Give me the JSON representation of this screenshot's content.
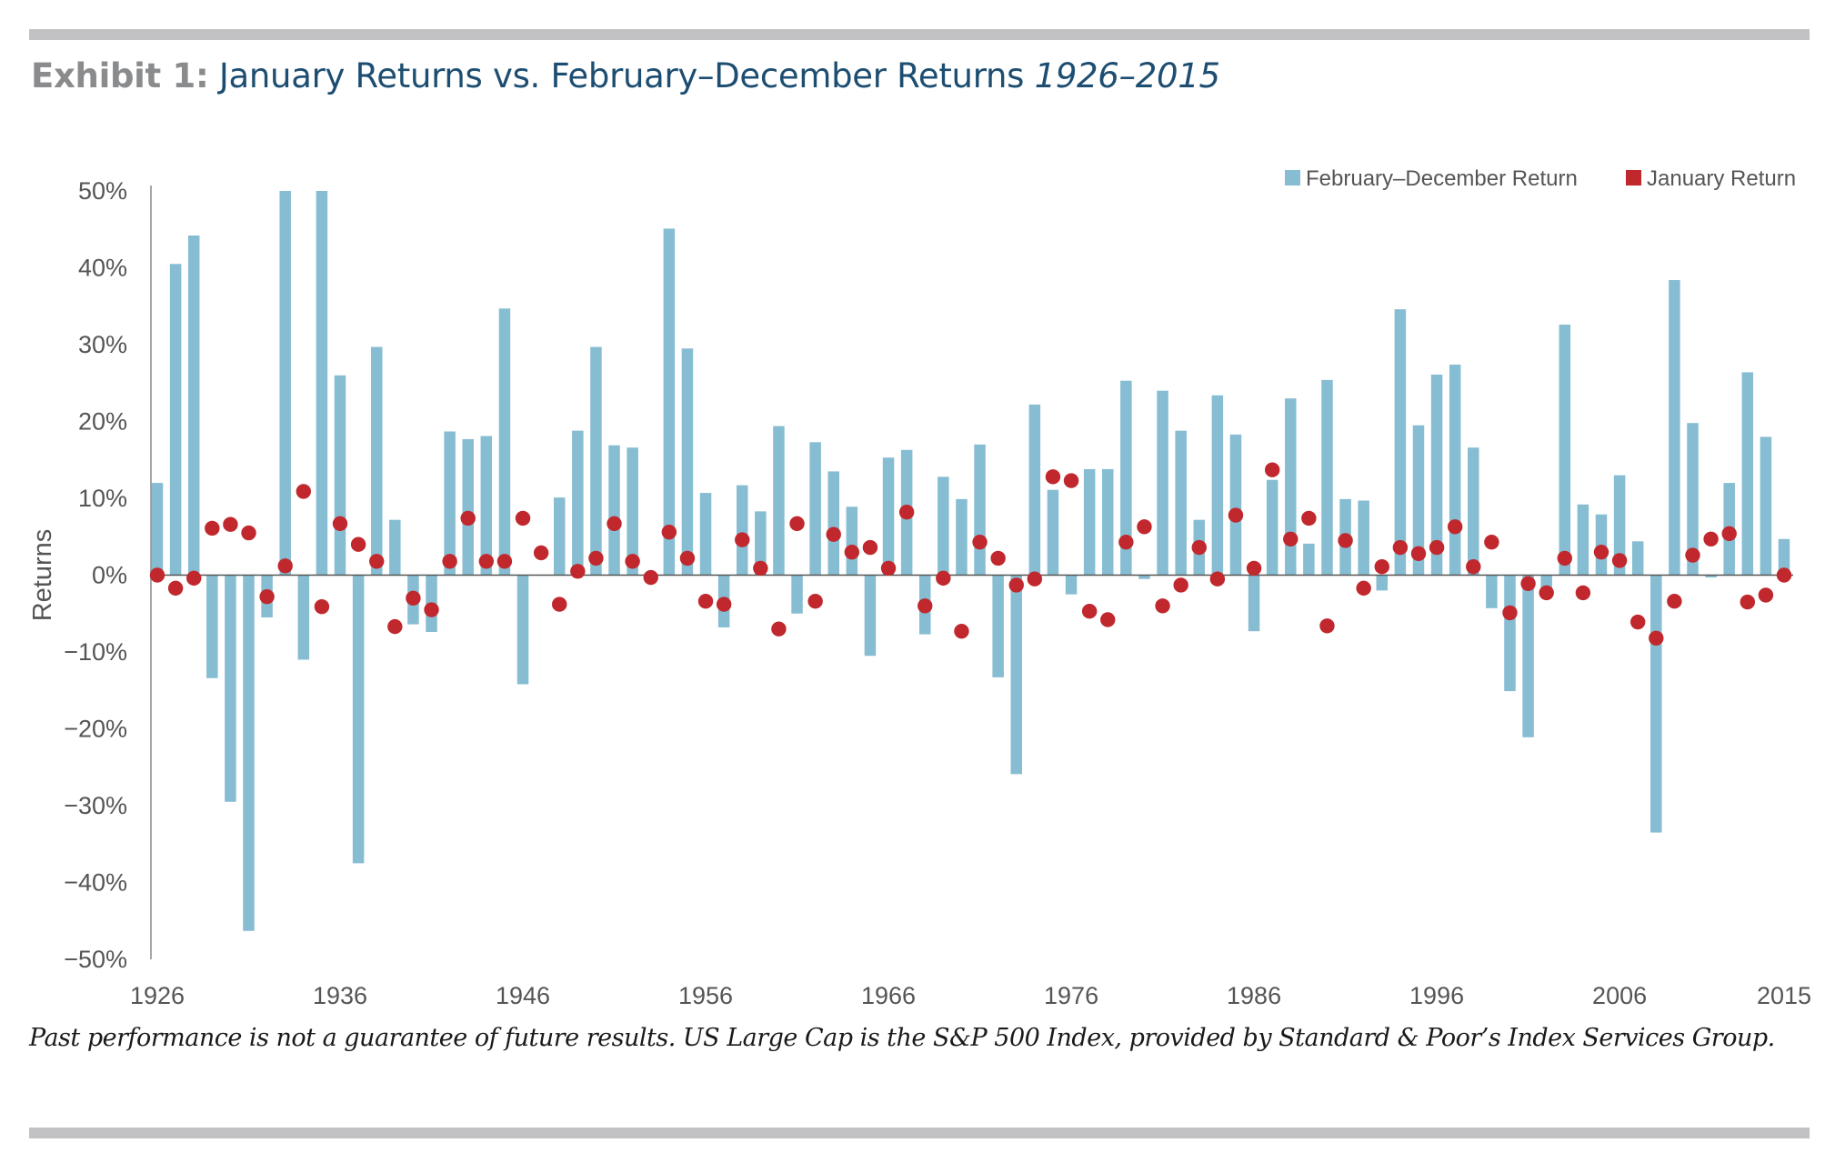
{
  "header": {
    "exhibit_label": "Exhibit 1:",
    "title": "January Returns vs. February–December Returns",
    "years": "1926–2015"
  },
  "footnote": "Past performance is not a guarantee of future results. US Large Cap is the S&P 500 Index, provided by Standard & Poor’s Index Services Group.",
  "colors": {
    "bar": "#86bdd2",
    "dot": "#c0282e",
    "axis": "#8a8a8a",
    "text": "#555555"
  },
  "chart_data": {
    "type": "bar",
    "title": "",
    "xlabel": "",
    "ylabel": "Returns",
    "ylim": [
      -50,
      50
    ],
    "y_ticks": [
      "50%",
      "40%",
      "30%",
      "20%",
      "10%",
      "0%",
      "−10%",
      "−20%",
      "−30%",
      "−40%",
      "−50%"
    ],
    "x_tick_labels": [
      "1926",
      "1936",
      "1946",
      "1956",
      "1966",
      "1976",
      "1986",
      "1996",
      "2006",
      "2015"
    ],
    "x_tick_years": [
      1926,
      1936,
      1946,
      1956,
      1966,
      1976,
      1986,
      1996,
      2006,
      2015
    ],
    "legend_position": "top-right",
    "grid": false,
    "years": [
      1926,
      1927,
      1928,
      1929,
      1930,
      1931,
      1932,
      1933,
      1934,
      1935,
      1936,
      1937,
      1938,
      1939,
      1940,
      1941,
      1942,
      1943,
      1944,
      1945,
      1946,
      1947,
      1948,
      1949,
      1950,
      1951,
      1952,
      1953,
      1954,
      1955,
      1956,
      1957,
      1958,
      1959,
      1960,
      1961,
      1962,
      1963,
      1964,
      1965,
      1966,
      1967,
      1968,
      1969,
      1970,
      1971,
      1972,
      1973,
      1974,
      1975,
      1976,
      1977,
      1978,
      1979,
      1980,
      1981,
      1982,
      1983,
      1984,
      1985,
      1986,
      1987,
      1988,
      1989,
      1990,
      1991,
      1992,
      1993,
      1994,
      1995,
      1996,
      1997,
      1998,
      1999,
      2000,
      2001,
      2002,
      2003,
      2004,
      2005,
      2006,
      2007,
      2008,
      2009,
      2010,
      2011,
      2012,
      2013,
      2014,
      2015
    ],
    "series": [
      {
        "name": "February–December Return",
        "kind": "bar",
        "values": [
          12,
          40.5,
          44.2,
          -13.4,
          -29.5,
          -46.3,
          -5.5,
          50,
          -11,
          50,
          26,
          -37.5,
          29.7,
          7.2,
          -6.4,
          -7.4,
          18.7,
          17.7,
          18.1,
          34.7,
          -14.2,
          0,
          10.1,
          18.8,
          29.7,
          16.9,
          16.6,
          0,
          45.1,
          29.5,
          10.7,
          -6.8,
          11.7,
          8.3,
          19.4,
          -5,
          17.3,
          13.5,
          8.9,
          -10.5,
          15.3,
          16.3,
          -7.7,
          12.8,
          9.9,
          17,
          -13.3,
          -25.9,
          22.2,
          11.1,
          -2.5,
          13.8,
          13.8,
          25.3,
          -0.5,
          24,
          18.8,
          7.2,
          23.4,
          18.3,
          -7.3,
          12.4,
          23,
          4.1,
          25.4,
          9.9,
          9.7,
          -2,
          34.6,
          19.5,
          26.1,
          27.4,
          16.6,
          -4.3,
          -15.1,
          -21.1,
          -2,
          32.6,
          9.2,
          7.9,
          13,
          4.4,
          -33.5,
          38.4,
          19.8,
          -0.3,
          12,
          26.4,
          18,
          4.7
        ]
      },
      {
        "name": "January Return",
        "kind": "dot",
        "values": [
          0,
          -1.7,
          -0.4,
          6.1,
          6.6,
          5.5,
          -2.8,
          1.2,
          10.9,
          -4.1,
          6.7,
          4,
          1.8,
          -6.7,
          -3,
          -4.5,
          1.8,
          7.4,
          1.8,
          1.8,
          7.4,
          2.9,
          -3.8,
          0.5,
          2.2,
          6.7,
          1.8,
          -0.3,
          5.6,
          2.2,
          -3.4,
          -3.8,
          4.6,
          0.9,
          -7,
          6.7,
          -3.4,
          5.3,
          3,
          3.6,
          0.9,
          8.2,
          -4,
          -0.4,
          -7.3,
          4.3,
          2.2,
          -1.3,
          -0.5,
          12.8,
          12.3,
          -4.7,
          -5.8,
          4.3,
          6.3,
          -4,
          -1.3,
          3.6,
          -0.5,
          7.8,
          0.9,
          13.7,
          4.7,
          7.4,
          -6.6,
          4.5,
          -1.7,
          1.1,
          3.6,
          2.8,
          3.6,
          6.3,
          1.1,
          4.3,
          -4.9,
          -1.1,
          -2.3,
          2.2,
          -2.3,
          3,
          1.9,
          -6.1,
          -8.2,
          -3.4,
          2.6,
          4.7,
          5.4,
          -3.5,
          -2.6,
          0
        ]
      }
    ]
  }
}
